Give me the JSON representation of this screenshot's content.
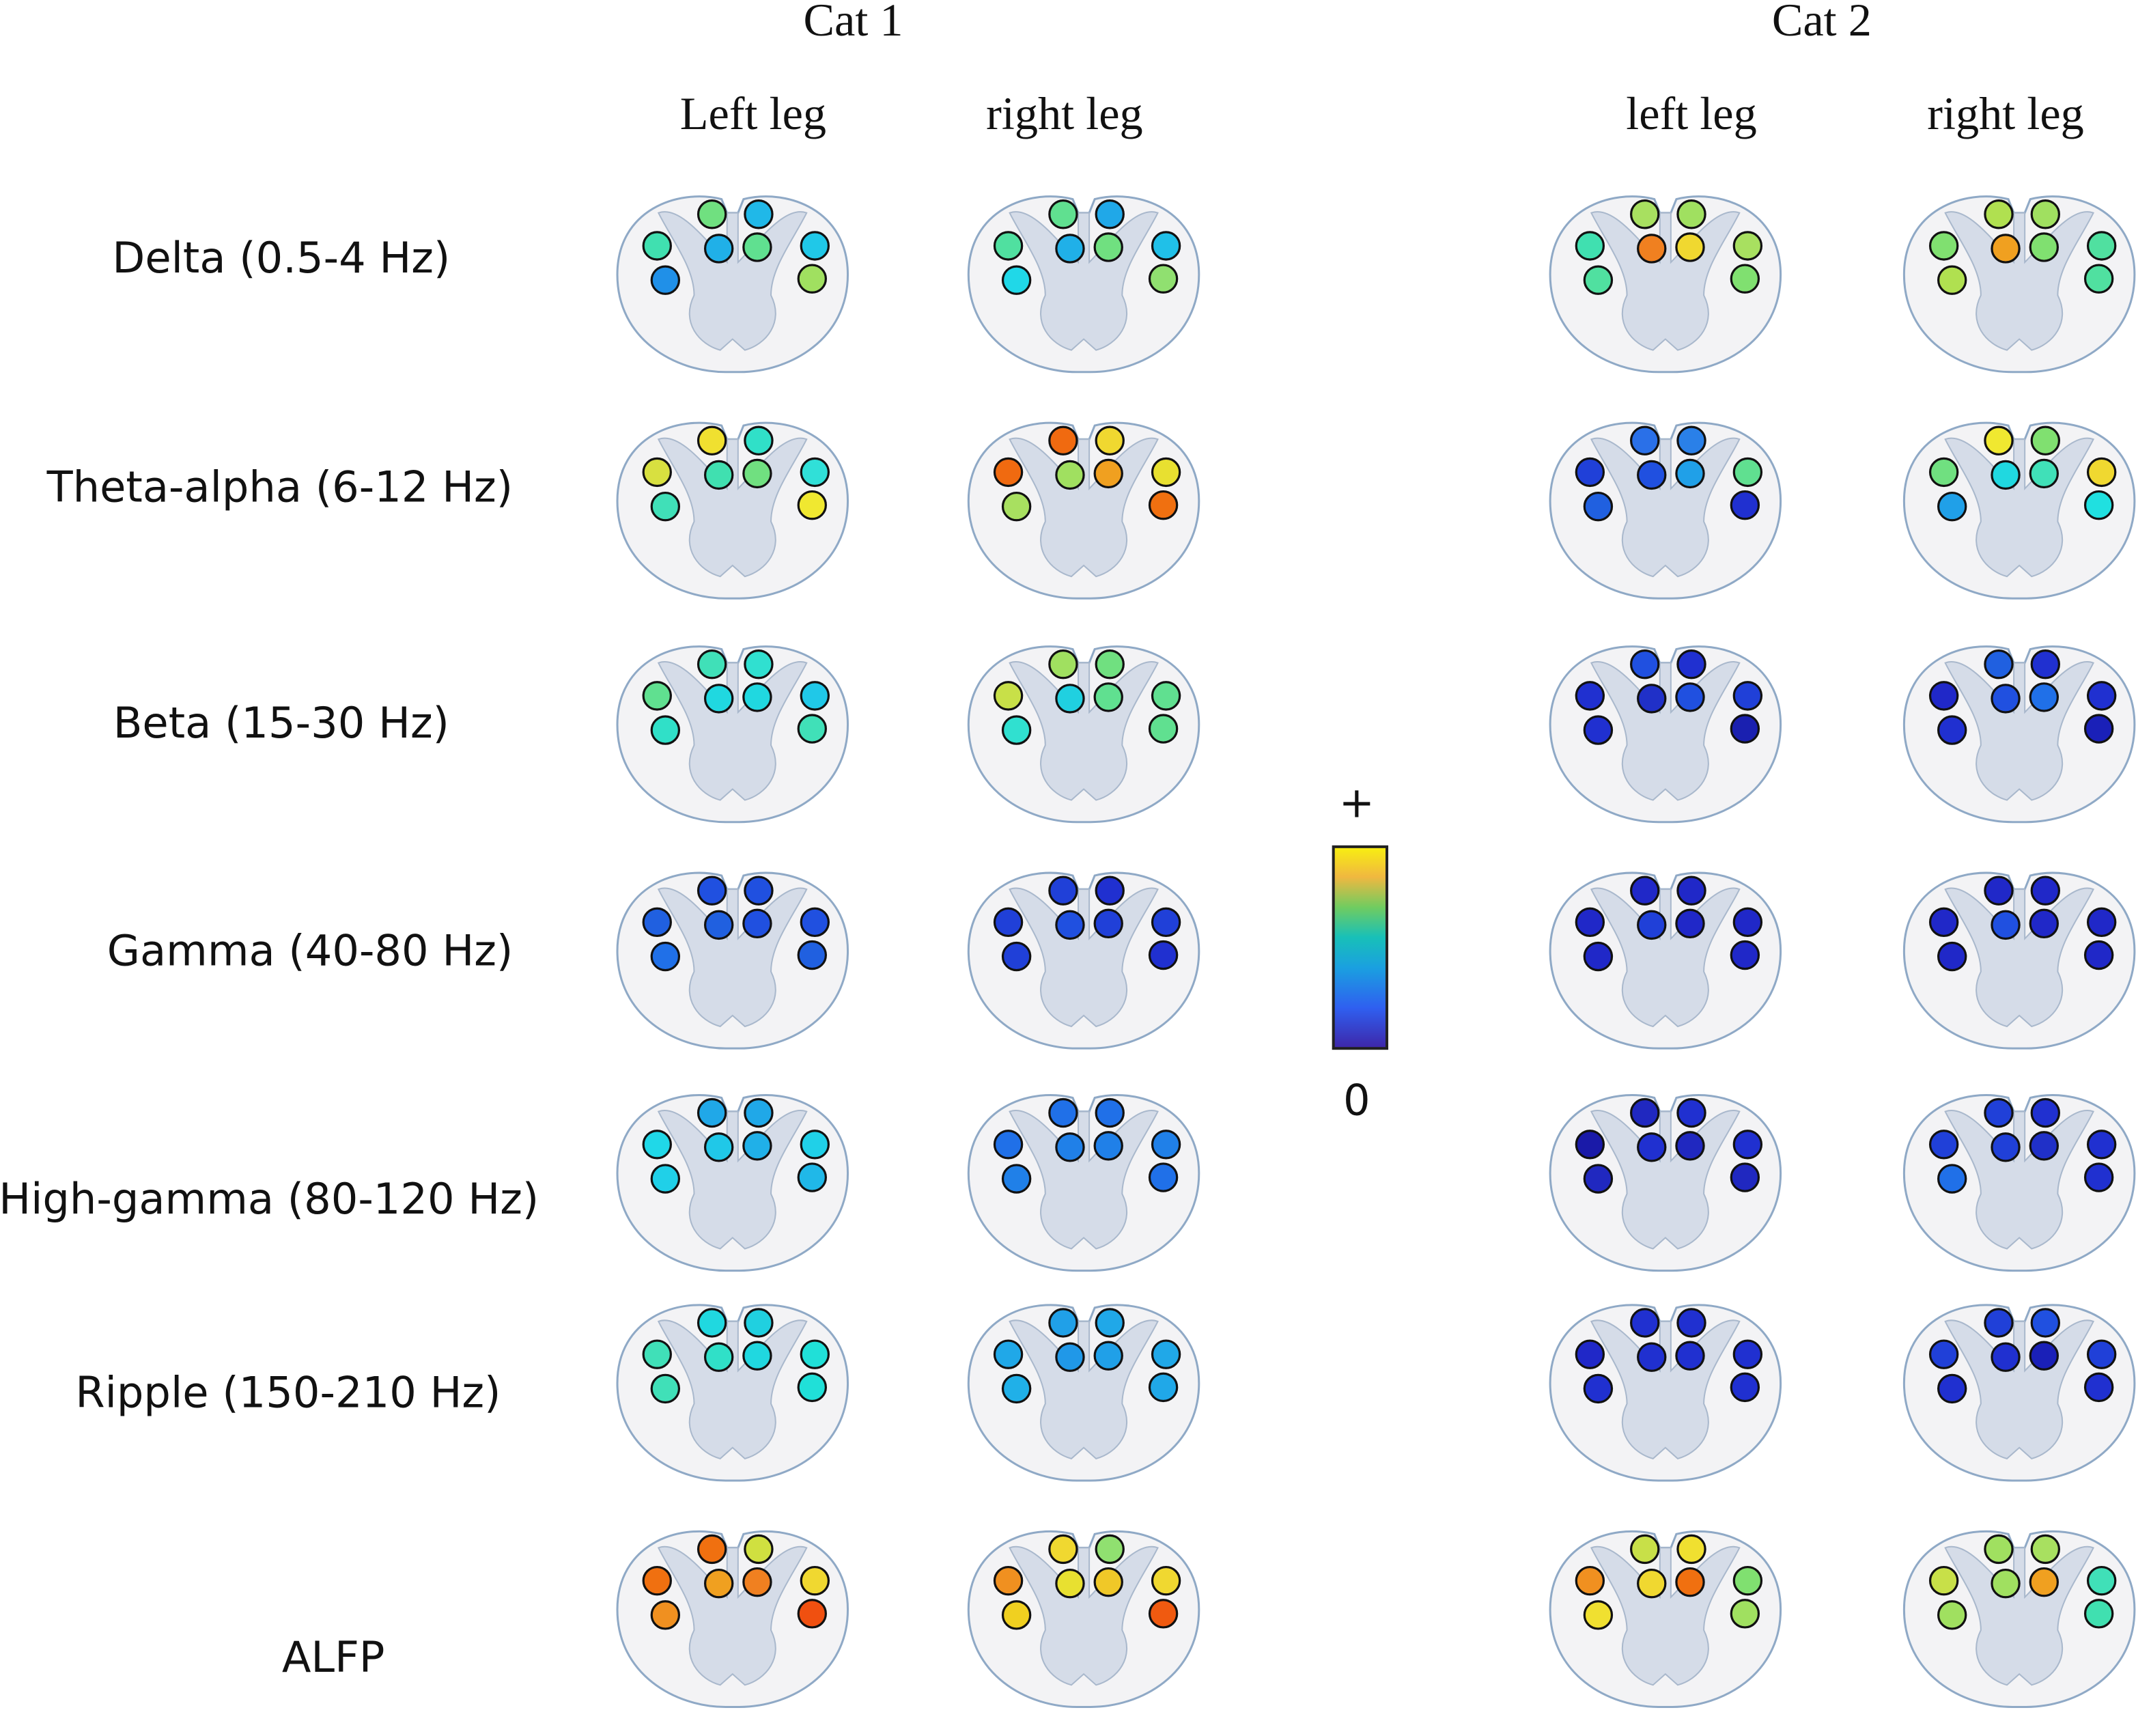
{
  "groups": [
    {
      "label": "Cat 1"
    },
    {
      "label": "Cat 2"
    }
  ],
  "columns": [
    {
      "label": "Left leg"
    },
    {
      "label": "right leg"
    },
    {
      "label": "left leg"
    },
    {
      "label": "right leg"
    }
  ],
  "rows": [
    {
      "label": "Delta (0.5-4 Hz)",
      "panels": [
        [
          "#70e080",
          "#20b8e8",
          "#40e0b0",
          "#20b0e8",
          "#60e090",
          "#20c8e8",
          "#2090e8",
          "#a0e060"
        ],
        [
          "#60e090",
          "#20a8e8",
          "#50e0a0",
          "#20b0e8",
          "#70e080",
          "#20c0e8",
          "#20d8e8",
          "#90e070"
        ],
        [
          "#a8e060",
          "#a0e060",
          "#40e0b0",
          "#f08020",
          "#f0d830",
          "#a8e060",
          "#50e0a0",
          "#80e070"
        ],
        [
          "#b0e050",
          "#a0e060",
          "#80e070",
          "#f0a020",
          "#80e070",
          "#50e0a0",
          "#b0e050",
          "#50e0a0"
        ]
      ]
    },
    {
      "label": "Theta-alpha (6-12 Hz)",
      "panels": [
        [
          "#f0e030",
          "#30e0c8",
          "#d8e040",
          "#40e0b0",
          "#70e080",
          "#30e0d8",
          "#40e0b8",
          "#f0e830"
        ],
        [
          "#f06a10",
          "#f0d830",
          "#f06a10",
          "#a0e060",
          "#f0a020",
          "#e8e030",
          "#a8e060",
          "#f07010"
        ],
        [
          "#2a70e8",
          "#2a80e8",
          "#2040d8",
          "#2050e0",
          "#20a0e8",
          "#60e090",
          "#2060e0",
          "#2030d0"
        ],
        [
          "#f0e830",
          "#80e070",
          "#70e080",
          "#20d8e0",
          "#40e0b8",
          "#f0d830",
          "#20a0e8",
          "#20e0e0"
        ]
      ]
    },
    {
      "label": "Beta (15-30 Hz)",
      "panels": [
        [
          "#40e0b8",
          "#30e0d0",
          "#60e090",
          "#20d8e0",
          "#20d8e0",
          "#20c8e8",
          "#30e0c8",
          "#40e0b8"
        ],
        [
          "#a0e060",
          "#70e080",
          "#c8e048",
          "#20d0e0",
          "#60e090",
          "#60e090",
          "#30e0d0",
          "#60e090"
        ],
        [
          "#2050e0",
          "#2030d0",
          "#2030d0",
          "#2030c8",
          "#2050e0",
          "#2040d8",
          "#2030d0",
          "#1a20b0"
        ],
        [
          "#2060e0",
          "#2030d0",
          "#2028c8",
          "#2050e0",
          "#2070e8",
          "#2030d0",
          "#2030d0",
          "#1a20b8"
        ]
      ]
    },
    {
      "label": "Gamma (40-80 Hz)",
      "panels": [
        [
          "#2050e0",
          "#2050e0",
          "#2060e0",
          "#2060e0",
          "#2050e0",
          "#2050e0",
          "#2070e8",
          "#2060e0"
        ],
        [
          "#2040d8",
          "#2030d0",
          "#2040d8",
          "#2050e0",
          "#2040d8",
          "#2040d8",
          "#2040d8",
          "#2030d0"
        ],
        [
          "#2028c8",
          "#2028c8",
          "#2028c8",
          "#2040d8",
          "#2028c8",
          "#2028c8",
          "#2028c8",
          "#2028c8"
        ],
        [
          "#2028c8",
          "#2028c8",
          "#2028c8",
          "#2050e0",
          "#2028c8",
          "#2028c8",
          "#2028c8",
          "#2028c8"
        ]
      ]
    },
    {
      "label": "High-gamma (80-120 Hz)",
      "panels": [
        [
          "#20a8e8",
          "#20a8e8",
          "#20d8e8",
          "#20c8e8",
          "#20b0e8",
          "#20d0e8",
          "#20d0e8",
          "#20b8e8"
        ],
        [
          "#2070e8",
          "#2070e8",
          "#2070e8",
          "#2080e8",
          "#2080e8",
          "#2080e8",
          "#2080e8",
          "#2070e8"
        ],
        [
          "#2028c0",
          "#2030d0",
          "#1a1aa8",
          "#2030d0",
          "#2028c0",
          "#2030d0",
          "#2028c0",
          "#2028c0"
        ],
        [
          "#2040d8",
          "#2030d0",
          "#2040d8",
          "#2040d8",
          "#2030c8",
          "#2030d0",
          "#2070e8",
          "#2030d0"
        ]
      ]
    },
    {
      "label": "Ripple (150-210 Hz)",
      "panels": [
        [
          "#20d8e0",
          "#20d0e0",
          "#40e0b8",
          "#30e0c8",
          "#20d8e0",
          "#20e0d8",
          "#40e0b8",
          "#20e0d8"
        ],
        [
          "#20a0e8",
          "#20a8e8",
          "#20a8e8",
          "#2098e8",
          "#20a0e8",
          "#20a8e8",
          "#20b0e8",
          "#20a8e8"
        ],
        [
          "#2030d0",
          "#2030d0",
          "#2028c8",
          "#2030d0",
          "#2030d0",
          "#2030d0",
          "#2030d0",
          "#2030d0"
        ],
        [
          "#2040d8",
          "#2050e0",
          "#2040d8",
          "#2030d0",
          "#1a20b8",
          "#2040d8",
          "#2030d0",
          "#2030d0"
        ]
      ]
    },
    {
      "label": "ALFP",
      "panels": [
        [
          "#f07010",
          "#d0e040",
          "#f07010",
          "#f0a020",
          "#f08020",
          "#f0d830",
          "#f09020",
          "#f05010"
        ],
        [
          "#f0d830",
          "#90e070",
          "#f09020",
          "#e8e030",
          "#f0c828",
          "#f0d830",
          "#f0d020",
          "#f05a10"
        ],
        [
          "#c8e048",
          "#f0e030",
          "#f09020",
          "#f0d830",
          "#f07010",
          "#80e070",
          "#f0e030",
          "#a0e060"
        ],
        [
          "#a0e060",
          "#a8e060",
          "#c8e048",
          "#a0e060",
          "#f0a020",
          "#40e0b8",
          "#a0e060",
          "#40e0b0"
        ]
      ]
    }
  ],
  "colorbar": {
    "max_label": "+",
    "min_label": "0"
  }
}
